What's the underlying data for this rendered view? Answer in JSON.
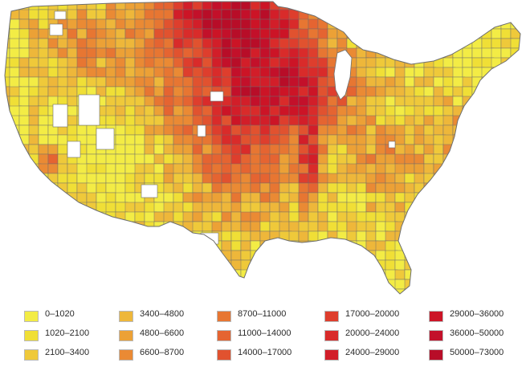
{
  "map": {
    "type": "choropleth",
    "region": "contiguous United States, by county",
    "colors": [
      "#f3ec45",
      "#f0df36",
      "#efc93a",
      "#eeb73a",
      "#eca136",
      "#ea8a34",
      "#e77632",
      "#e56431",
      "#e1522f",
      "#de3e2d",
      "#d92b2a",
      "#d21e29",
      "#cc1426",
      "#c3102a",
      "#b80d28"
    ]
  },
  "legend": {
    "items": [
      {
        "label": "0–1020",
        "color": "#f3ec45"
      },
      {
        "label": "1020–2100",
        "color": "#f0df36"
      },
      {
        "label": "2100–3400",
        "color": "#efc93a"
      },
      {
        "label": "3400–4800",
        "color": "#eeb73a"
      },
      {
        "label": "4800–6600",
        "color": "#eca136"
      },
      {
        "label": "6600–8700",
        "color": "#ea8a34"
      },
      {
        "label": "8700–11000",
        "color": "#e77632"
      },
      {
        "label": "11000–14000",
        "color": "#e56431"
      },
      {
        "label": "14000–17000",
        "color": "#e1522f"
      },
      {
        "label": "17000–20000",
        "color": "#de3e2d"
      },
      {
        "label": "20000–24000",
        "color": "#d92b2a"
      },
      {
        "label": "24000–29000",
        "color": "#d21e29"
      },
      {
        "label": "29000–36000",
        "color": "#cc1426"
      },
      {
        "label": "36000–50000",
        "color": "#c3102a"
      },
      {
        "label": "50000–73000",
        "color": "#b80d28"
      }
    ]
  }
}
